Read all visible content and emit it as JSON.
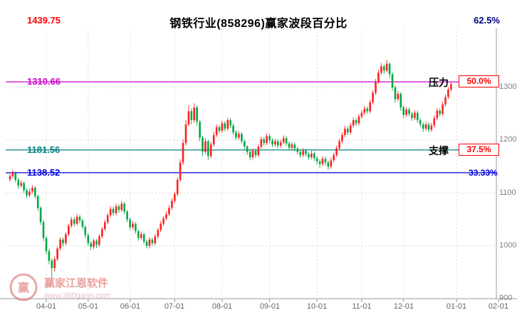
{
  "header": {
    "top_left_value": "1439.75",
    "title": "钢铁行业(858296)赢家波段百分比",
    "top_right_value": "62.5%"
  },
  "levels": [
    {
      "value": "1310.66",
      "price": 1310.66,
      "color": "#cc00cc",
      "label": "压力",
      "pct": "50.0%"
    },
    {
      "value": "1181.56",
      "price": 1181.56,
      "color": "#008080",
      "label": "支撑",
      "pct": "37.5%"
    },
    {
      "value": "1138.52",
      "price": 1138.52,
      "color": "#0000dd",
      "label": "",
      "pct": "33.33%"
    }
  ],
  "y_axis": {
    "ticks": [
      1300,
      1200,
      1100,
      1000,
      900
    ]
  },
  "x_axis": {
    "labels": [
      "04-01",
      "05-01",
      "06-01",
      "07-01",
      "08-01",
      "09-01",
      "10-01",
      "11-01",
      "12-01",
      "01-01",
      "02-01"
    ]
  },
  "watermark": {
    "brand": "赢家江恩软件",
    "url": "www.360gann.com",
    "logo_char": "赢"
  },
  "chart_data": {
    "type": "candlestick",
    "title": "钢铁行业(858296)赢家波段百分比",
    "symbol": "858296",
    "up_color": "#ff2020",
    "down_color": "#00a843",
    "ylim": [
      900,
      1412
    ],
    "grid": true,
    "month_ticks": [
      13,
      28,
      43,
      59,
      76,
      93,
      110,
      126,
      141,
      160,
      175
    ],
    "wave_levels": {
      "62.5%": 1439.75,
      "50.0%": 1310.66,
      "37.5%": 1181.56,
      "33.33%": 1138.52
    },
    "ohlc": [
      [
        1126,
        1136,
        1122,
        1132
      ],
      [
        1132,
        1144,
        1129,
        1138
      ],
      [
        1138,
        1141,
        1120,
        1125
      ],
      [
        1125,
        1129,
        1108,
        1114
      ],
      [
        1114,
        1124,
        1110,
        1119
      ],
      [
        1119,
        1122,
        1100,
        1105
      ],
      [
        1105,
        1109,
        1090,
        1096
      ],
      [
        1096,
        1108,
        1092,
        1103
      ],
      [
        1103,
        1115,
        1099,
        1110
      ],
      [
        1110,
        1113,
        1089,
        1094
      ],
      [
        1094,
        1097,
        1066,
        1072
      ],
      [
        1072,
        1075,
        1040,
        1045
      ],
      [
        1045,
        1049,
        1009,
        1015
      ],
      [
        1015,
        1018,
        984,
        990
      ],
      [
        990,
        994,
        965,
        972
      ],
      [
        972,
        976,
        938,
        958
      ],
      [
        958,
        980,
        952,
        975
      ],
      [
        975,
        999,
        971,
        995
      ],
      [
        995,
        1016,
        991,
        1012
      ],
      [
        1012,
        1016,
        999,
        1005
      ],
      [
        1005,
        1026,
        1001,
        1022
      ],
      [
        1022,
        1042,
        1018,
        1038
      ],
      [
        1038,
        1055,
        1034,
        1050
      ],
      [
        1050,
        1054,
        1037,
        1042
      ],
      [
        1042,
        1060,
        1039,
        1055
      ],
      [
        1055,
        1059,
        1043,
        1048
      ],
      [
        1048,
        1051,
        1031,
        1036
      ],
      [
        1036,
        1039,
        1015,
        1020
      ],
      [
        1020,
        1024,
        1000,
        1005
      ],
      [
        1005,
        1009,
        992,
        998
      ],
      [
        998,
        1014,
        994,
        1010
      ],
      [
        1010,
        1013,
        996,
        1002
      ],
      [
        1002,
        1022,
        998,
        1018
      ],
      [
        1018,
        1036,
        1014,
        1032
      ],
      [
        1032,
        1049,
        1028,
        1045
      ],
      [
        1045,
        1062,
        1041,
        1058
      ],
      [
        1058,
        1075,
        1054,
        1070
      ],
      [
        1070,
        1074,
        1057,
        1062
      ],
      [
        1062,
        1080,
        1058,
        1075
      ],
      [
        1075,
        1079,
        1063,
        1068
      ],
      [
        1068,
        1085,
        1064,
        1080
      ],
      [
        1080,
        1083,
        1060,
        1065
      ],
      [
        1065,
        1068,
        1045,
        1050
      ],
      [
        1050,
        1054,
        1030,
        1035
      ],
      [
        1035,
        1047,
        1031,
        1042
      ],
      [
        1042,
        1045,
        1023,
        1028
      ],
      [
        1028,
        1031,
        1010,
        1015
      ],
      [
        1015,
        1027,
        1011,
        1022
      ],
      [
        1022,
        1025,
        1003,
        1008
      ],
      [
        1008,
        1012,
        995,
        1000
      ],
      [
        1000,
        1017,
        996,
        1012
      ],
      [
        1012,
        1015,
        1000,
        1005
      ],
      [
        1005,
        1023,
        1001,
        1018
      ],
      [
        1018,
        1034,
        1014,
        1030
      ],
      [
        1030,
        1047,
        1026,
        1042
      ],
      [
        1042,
        1056,
        1038,
        1052
      ],
      [
        1052,
        1065,
        1048,
        1060
      ],
      [
        1060,
        1077,
        1056,
        1072
      ],
      [
        1072,
        1090,
        1068,
        1085
      ],
      [
        1085,
        1103,
        1081,
        1098
      ],
      [
        1098,
        1130,
        1094,
        1125
      ],
      [
        1125,
        1164,
        1121,
        1158
      ],
      [
        1158,
        1202,
        1153,
        1195
      ],
      [
        1195,
        1238,
        1190,
        1230
      ],
      [
        1230,
        1266,
        1226,
        1255
      ],
      [
        1255,
        1260,
        1230,
        1238
      ],
      [
        1238,
        1270,
        1233,
        1262
      ],
      [
        1262,
        1266,
        1228,
        1235
      ],
      [
        1235,
        1239,
        1198,
        1205
      ],
      [
        1205,
        1209,
        1170,
        1178
      ],
      [
        1178,
        1204,
        1174,
        1198
      ],
      [
        1198,
        1201,
        1163,
        1170
      ],
      [
        1170,
        1197,
        1166,
        1192
      ],
      [
        1192,
        1216,
        1188,
        1210
      ],
      [
        1210,
        1230,
        1206,
        1225
      ],
      [
        1225,
        1229,
        1213,
        1218
      ],
      [
        1218,
        1237,
        1214,
        1232
      ],
      [
        1232,
        1236,
        1217,
        1222
      ],
      [
        1222,
        1243,
        1218,
        1238
      ],
      [
        1238,
        1242,
        1223,
        1228
      ],
      [
        1228,
        1232,
        1210,
        1215
      ],
      [
        1215,
        1219,
        1200,
        1205
      ],
      [
        1205,
        1217,
        1201,
        1212
      ],
      [
        1212,
        1215,
        1193,
        1198
      ],
      [
        1198,
        1202,
        1183,
        1188
      ],
      [
        1188,
        1191,
        1172,
        1178
      ],
      [
        1178,
        1182,
        1162,
        1168
      ],
      [
        1168,
        1185,
        1164,
        1180
      ],
      [
        1180,
        1184,
        1167,
        1172
      ],
      [
        1172,
        1192,
        1168,
        1188
      ],
      [
        1188,
        1207,
        1184,
        1202
      ],
      [
        1202,
        1206,
        1190,
        1195
      ],
      [
        1195,
        1213,
        1191,
        1208
      ],
      [
        1208,
        1212,
        1195,
        1200
      ],
      [
        1200,
        1204,
        1187,
        1192
      ],
      [
        1192,
        1203,
        1188,
        1198
      ],
      [
        1198,
        1202,
        1185,
        1190
      ],
      [
        1190,
        1201,
        1186,
        1196
      ],
      [
        1196,
        1209,
        1192,
        1204
      ],
      [
        1204,
        1208,
        1189,
        1194
      ],
      [
        1194,
        1198,
        1181,
        1186
      ],
      [
        1186,
        1197,
        1182,
        1192
      ],
      [
        1192,
        1196,
        1179,
        1184
      ],
      [
        1184,
        1188,
        1173,
        1178
      ],
      [
        1178,
        1182,
        1167,
        1172
      ],
      [
        1172,
        1185,
        1168,
        1180
      ],
      [
        1180,
        1184,
        1169,
        1174
      ],
      [
        1174,
        1178,
        1163,
        1168
      ],
      [
        1168,
        1180,
        1164,
        1175
      ],
      [
        1175,
        1179,
        1161,
        1166
      ],
      [
        1166,
        1170,
        1154,
        1160
      ],
      [
        1160,
        1164,
        1148,
        1155
      ],
      [
        1155,
        1170,
        1151,
        1165
      ],
      [
        1165,
        1169,
        1152,
        1158
      ],
      [
        1158,
        1162,
        1144,
        1150
      ],
      [
        1150,
        1167,
        1146,
        1162
      ],
      [
        1162,
        1177,
        1158,
        1172
      ],
      [
        1172,
        1190,
        1168,
        1185
      ],
      [
        1185,
        1203,
        1181,
        1198
      ],
      [
        1198,
        1215,
        1194,
        1210
      ],
      [
        1210,
        1227,
        1206,
        1222
      ],
      [
        1222,
        1226,
        1210,
        1215
      ],
      [
        1215,
        1233,
        1211,
        1228
      ],
      [
        1228,
        1243,
        1224,
        1238
      ],
      [
        1238,
        1242,
        1227,
        1232
      ],
      [
        1232,
        1250,
        1228,
        1245
      ],
      [
        1245,
        1257,
        1241,
        1252
      ],
      [
        1252,
        1265,
        1248,
        1260
      ],
      [
        1260,
        1264,
        1250,
        1255
      ],
      [
        1255,
        1277,
        1251,
        1272
      ],
      [
        1272,
        1295,
        1268,
        1290
      ],
      [
        1290,
        1316,
        1286,
        1310
      ],
      [
        1310,
        1334,
        1306,
        1328
      ],
      [
        1328,
        1346,
        1324,
        1340
      ],
      [
        1340,
        1344,
        1326,
        1332
      ],
      [
        1332,
        1352,
        1328,
        1345
      ],
      [
        1345,
        1348,
        1318,
        1325
      ],
      [
        1325,
        1329,
        1294,
        1300
      ],
      [
        1300,
        1304,
        1271,
        1278
      ],
      [
        1278,
        1293,
        1274,
        1288
      ],
      [
        1288,
        1291,
        1256,
        1262
      ],
      [
        1262,
        1266,
        1242,
        1248
      ],
      [
        1248,
        1263,
        1244,
        1258
      ],
      [
        1258,
        1262,
        1245,
        1250
      ],
      [
        1250,
        1254,
        1237,
        1242
      ],
      [
        1242,
        1257,
        1238,
        1252
      ],
      [
        1252,
        1256,
        1233,
        1238
      ],
      [
        1238,
        1242,
        1225,
        1230
      ],
      [
        1230,
        1234,
        1216,
        1222
      ],
      [
        1222,
        1235,
        1218,
        1230
      ],
      [
        1230,
        1234,
        1215,
        1220
      ],
      [
        1220,
        1233,
        1216,
        1228
      ],
      [
        1228,
        1247,
        1224,
        1242
      ],
      [
        1242,
        1261,
        1238,
        1256
      ],
      [
        1256,
        1260,
        1245,
        1250
      ],
      [
        1250,
        1273,
        1246,
        1268
      ],
      [
        1268,
        1287,
        1264,
        1282
      ],
      [
        1282,
        1301,
        1278,
        1296
      ],
      [
        1296,
        1311,
        1292,
        1306
      ]
    ]
  }
}
